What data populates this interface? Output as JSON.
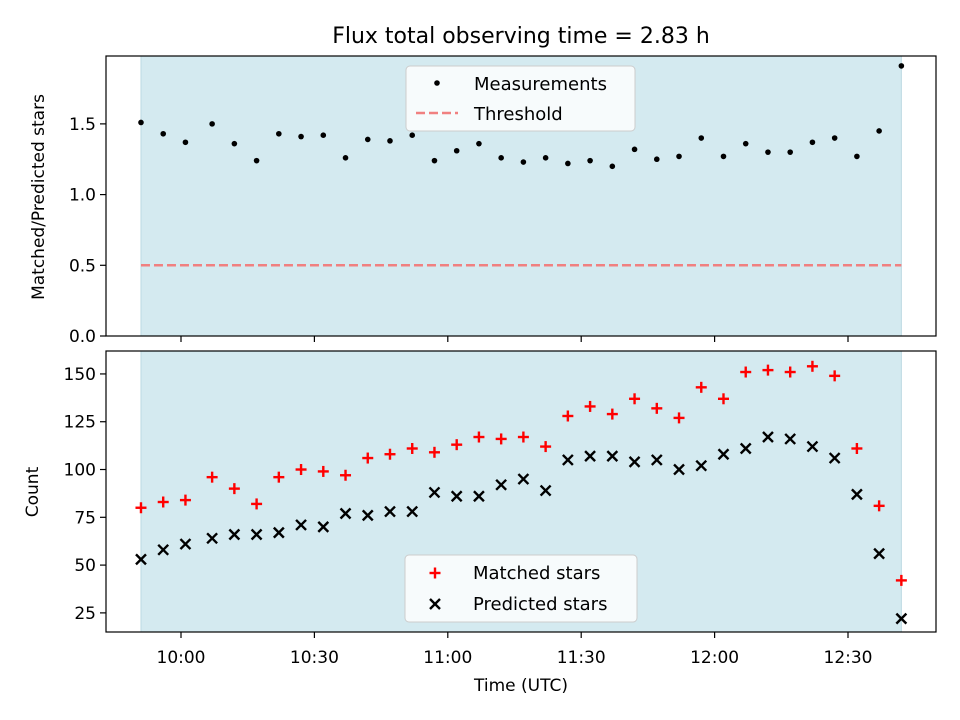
{
  "chart_data": {
    "type": "scatter",
    "title": "Flux total observing time = 2.83 h",
    "xlabel": "Time (UTC)",
    "x_ticks": [
      "10:00",
      "10:30",
      "11:00",
      "11:30",
      "12:00",
      "12:30"
    ],
    "x_tick_hours": [
      10.0,
      10.5,
      11.0,
      11.5,
      12.0,
      12.5
    ],
    "observing_window": {
      "start": "09:51",
      "end": "12:42",
      "color": "#d4eaf0"
    },
    "times": [
      "09:51",
      "09:56",
      "10:01",
      "10:07",
      "10:12",
      "10:17",
      "10:22",
      "10:27",
      "10:32",
      "10:37",
      "10:42",
      "10:47",
      "10:52",
      "10:57",
      "11:02",
      "11:07",
      "11:12",
      "11:17",
      "11:22",
      "11:27",
      "11:32",
      "11:37",
      "11:42",
      "11:47",
      "11:52",
      "11:57",
      "12:02",
      "12:07",
      "12:12",
      "12:17",
      "12:22",
      "12:27",
      "12:32",
      "12:37",
      "12:42"
    ],
    "panels": [
      {
        "ylabel": "Matched/Predicted stars",
        "ylim": [
          0,
          1.98
        ],
        "y_ticks": [
          "0.0",
          "0.5",
          "1.0",
          "1.5"
        ],
        "y_tick_values": [
          0,
          0.5,
          1.0,
          1.5
        ],
        "threshold": {
          "name": "Threshold",
          "value": 0.5,
          "color": "#f08080"
        },
        "legend_position": "top-center",
        "series": [
          {
            "name": "Measurements",
            "marker": "dot",
            "color": "#000000",
            "values": [
              1.51,
              1.43,
              1.37,
              1.5,
              1.36,
              1.24,
              1.43,
              1.41,
              1.42,
              1.26,
              1.39,
              1.38,
              1.42,
              1.24,
              1.31,
              1.36,
              1.26,
              1.23,
              1.26,
              1.22,
              1.24,
              1.2,
              1.32,
              1.25,
              1.27,
              1.4,
              1.27,
              1.36,
              1.3,
              1.3,
              1.37,
              1.4,
              1.27,
              1.45,
              1.91
            ]
          }
        ]
      },
      {
        "ylabel": "Count",
        "ylim": [
          15,
          162
        ],
        "y_ticks": [
          "25",
          "50",
          "75",
          "100",
          "125",
          "150"
        ],
        "y_tick_values": [
          25,
          50,
          75,
          100,
          125,
          150
        ],
        "legend_position": "bottom-center",
        "series": [
          {
            "name": "Matched stars",
            "marker": "plus",
            "color": "#ff0000",
            "values": [
              80,
              83,
              84,
              96,
              90,
              82,
              96,
              100,
              99,
              97,
              106,
              108,
              111,
              109,
              113,
              117,
              116,
              117,
              112,
              128,
              133,
              129,
              137,
              132,
              127,
              143,
              137,
              151,
              152,
              151,
              154,
              149,
              111,
              81,
              42
            ]
          },
          {
            "name": "Predicted stars",
            "marker": "x",
            "color": "#000000",
            "values": [
              53,
              58,
              61,
              64,
              66,
              66,
              67,
              71,
              70,
              77,
              76,
              78,
              78,
              88,
              86,
              86,
              92,
              95,
              89,
              105,
              107,
              107,
              104,
              105,
              100,
              102,
              108,
              111,
              117,
              116,
              112,
              106,
              87,
              56,
              22
            ]
          }
        ]
      }
    ]
  }
}
